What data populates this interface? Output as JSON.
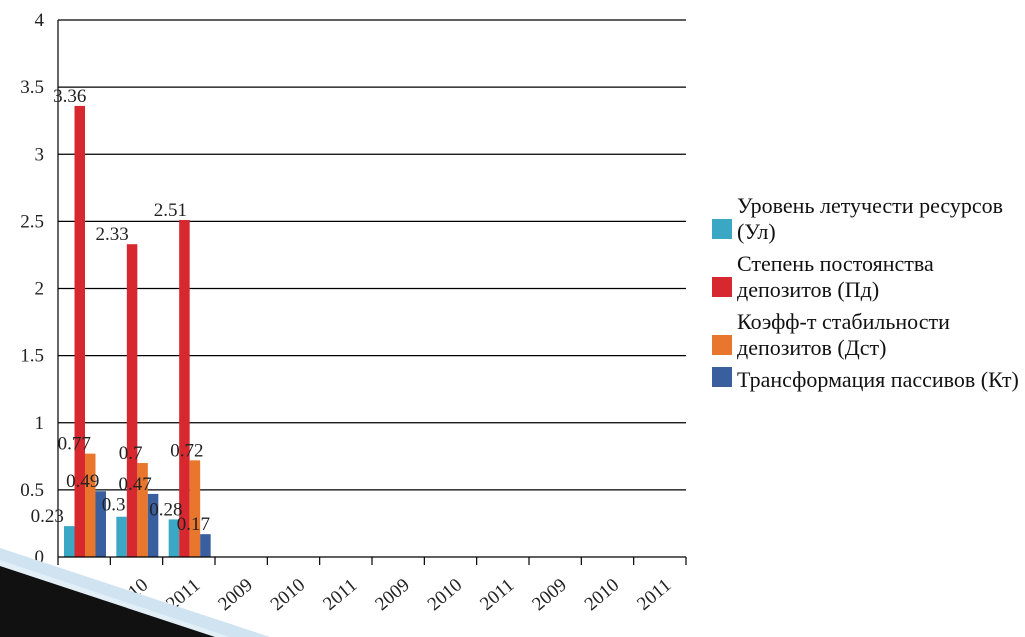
{
  "chart_data": {
    "type": "bar",
    "title": "",
    "xlabel": "",
    "ylabel": "",
    "ylim": [
      0,
      4
    ],
    "yticks": [
      "0",
      "0.5",
      "1",
      "1.5",
      "2",
      "2.5",
      "3",
      "3.5",
      "4"
    ],
    "categories": [
      "2009",
      "2010",
      "2011",
      "2009",
      "2010",
      "2011",
      "2009",
      "2010",
      "2011",
      "2009",
      "2010",
      "2011"
    ],
    "grid": true,
    "legend_position": "right",
    "series": [
      {
        "name": "Уровень летучести ресурсов (Ул)",
        "color": "#3aa8c4",
        "values": [
          0.23,
          0.3,
          0.28,
          null,
          null,
          null,
          null,
          null,
          null,
          null,
          null,
          null
        ],
        "labels": [
          "0.23",
          "0.3",
          "0.28"
        ]
      },
      {
        "name": "Степень постоянства депозитов (Пд)",
        "color": "#d8282f",
        "values": [
          3.36,
          2.33,
          2.51,
          null,
          null,
          null,
          null,
          null,
          null,
          null,
          null,
          null
        ],
        "labels": [
          "3.36",
          "2.33",
          "2.51"
        ]
      },
      {
        "name": "Коэфф-т стабильности депозитов (Дст)",
        "color": "#e8762c",
        "values": [
          0.77,
          0.7,
          0.72,
          null,
          null,
          null,
          null,
          null,
          null,
          null,
          null,
          null
        ],
        "labels": [
          "0.77",
          "0.7",
          "0.72"
        ]
      },
      {
        "name": "Трансформация пассивов (Кт)",
        "color": "#3a5f9e",
        "values": [
          0.49,
          0.47,
          0.17,
          null,
          null,
          null,
          null,
          null,
          null,
          null,
          null,
          null
        ],
        "labels": [
          "0.49",
          "0.47",
          "0.17"
        ]
      }
    ]
  }
}
